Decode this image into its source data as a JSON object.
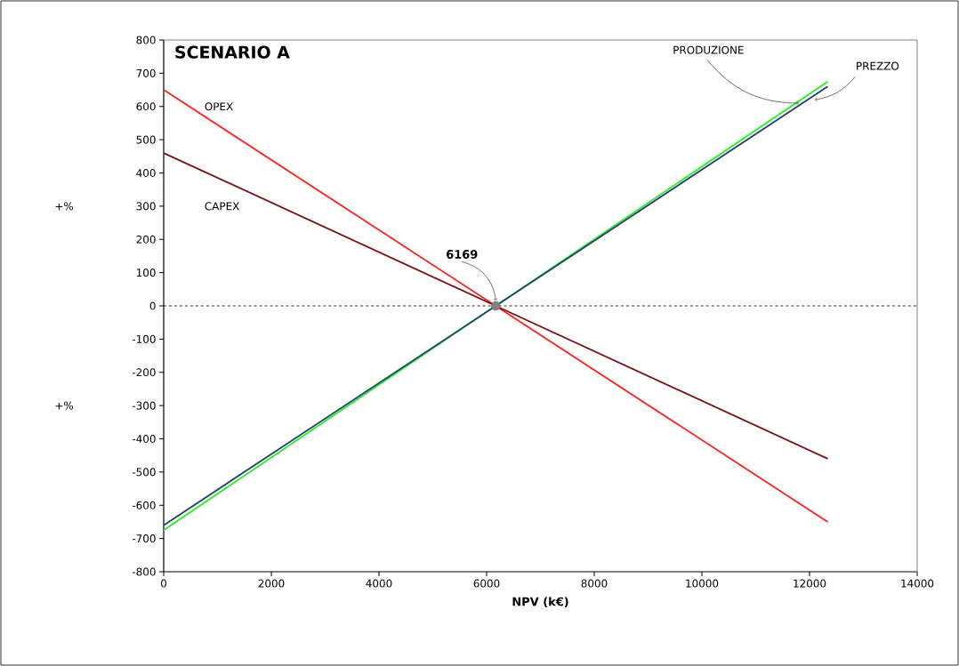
{
  "chart_data": {
    "type": "line",
    "title": "SCENARIO A",
    "xlabel": "NPV (k€)",
    "annotations": [
      {
        "text": "6169",
        "x": 6169,
        "y": 0
      },
      "+%",
      "+%"
    ],
    "series": [
      {
        "name": "OPEX",
        "color": "#ff2020",
        "x": [
          0,
          6169,
          12338
        ],
        "values": [
          650,
          0,
          -650
        ]
      },
      {
        "name": "CAPEX",
        "color": "#7b1010",
        "x": [
          0,
          6169,
          12338
        ],
        "values": [
          460,
          0,
          -460
        ]
      },
      {
        "name": "PRODUZIONE",
        "color": "#22ee22",
        "x": [
          0,
          6169,
          12338
        ],
        "values": [
          -675,
          0,
          675
        ]
      },
      {
        "name": "PREZZO",
        "color": "#1f3f6f",
        "x": [
          0,
          6169,
          12338
        ],
        "values": [
          -660,
          0,
          660
        ]
      },
      {
        "type": "scatter",
        "color": "#808080",
        "marker": "circle",
        "x": [
          6169
        ],
        "values": [
          0
        ]
      }
    ],
    "ref_lines": [
      {
        "axis": "y",
        "value": 0,
        "color": "#000000",
        "line_style": "dashed"
      }
    ],
    "xlim": [
      0,
      14000
    ],
    "ylim": [
      -800,
      800
    ],
    "xticks": [
      0,
      2000,
      4000,
      6000,
      8000,
      10000,
      12000,
      14000
    ],
    "yticks": [
      -800,
      -700,
      -600,
      -500,
      -400,
      -300,
      -200,
      -100,
      0,
      100,
      200,
      300,
      400,
      500,
      600,
      700,
      800
    ],
    "grid": false,
    "line_style": "solid"
  }
}
